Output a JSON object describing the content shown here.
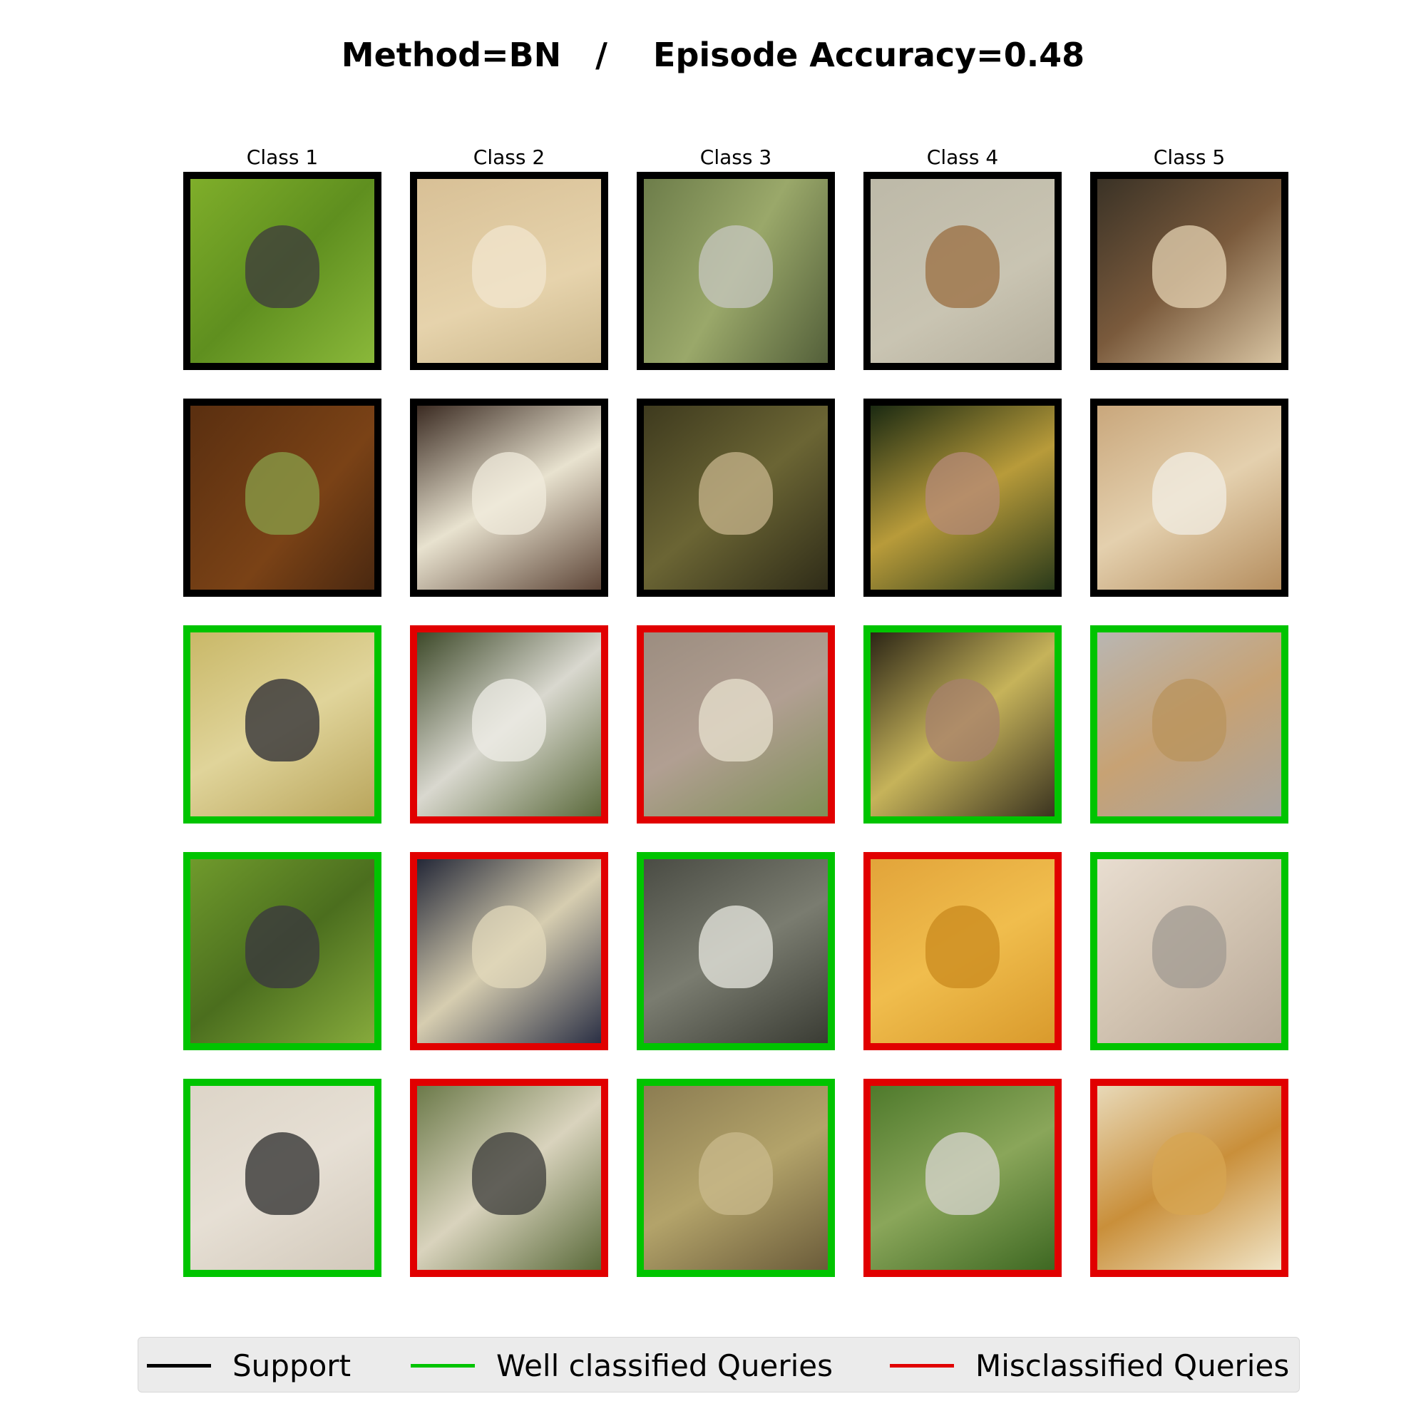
{
  "title": "Method=BN   /    Episode Accuracy=0.48",
  "colors": {
    "support": "#000000",
    "correct": "#00c400",
    "wrong": "#e10000"
  },
  "classes": [
    "Class 1",
    "Class 2",
    "Class 3",
    "Class 4",
    "Class 5"
  ],
  "grid": [
    [
      {
        "status": "support",
        "bg": "linear-gradient(135deg,#7fae2a 0%,#5f8f1f 50%,#8ab83a 100%)",
        "subject": "#3d3a3e"
      },
      {
        "status": "support",
        "bg": "linear-gradient(160deg,#d8c096 0%,#e6d3ac 60%,#cbb78c 100%)",
        "subject": "#f1e6cf"
      },
      {
        "status": "support",
        "bg": "linear-gradient(120deg,#6d7d4a 0%,#9aa86a 50%,#54603a 100%)",
        "subject": "#c7c7c0"
      },
      {
        "status": "support",
        "bg": "linear-gradient(150deg,#bdb9a8 0%,#c9c4b2 60%,#b4ae9c 100%)",
        "subject": "#9a6d40"
      },
      {
        "status": "support",
        "bg": "linear-gradient(140deg,#3a3226 0%,#7a5a3c 50%,#d8c4a2 100%)",
        "subject": "#e5d3b3"
      }
    ],
    [
      {
        "status": "support",
        "bg": "linear-gradient(130deg,#5a2f10 0%,#7a4216 60%,#4a2810 100%)",
        "subject": "#8aa04a"
      },
      {
        "status": "support",
        "bg": "linear-gradient(150deg,#3b2b22 0%,#e8e2cf 50%,#5e4638 100%)",
        "subject": "#f0ebdc"
      },
      {
        "status": "support",
        "bg": "linear-gradient(140deg,#3e3a1e 0%,#6b6534 50%,#2f2c18 100%)",
        "subject": "#c7b48c"
      },
      {
        "status": "support",
        "bg": "linear-gradient(150deg,#1b2a12 0%,#b89b3a 50%,#2a3a1a 100%)",
        "subject": "#b58a7a"
      },
      {
        "status": "support",
        "bg": "linear-gradient(150deg,#c9a77c 0%,#e4d0ae 50%,#b58e5f 100%)",
        "subject": "#f2ede4"
      }
    ],
    [
      {
        "status": "correct",
        "bg": "linear-gradient(150deg,#c9b868 0%,#e0d49a 50%,#b9a55c 100%)",
        "subject": "#2a2a33"
      },
      {
        "status": "wrong",
        "bg": "linear-gradient(140deg,#3e4a2a 0%,#d9d8cf 50%,#5b6a3c 100%)",
        "subject": "#eeece6"
      },
      {
        "status": "wrong",
        "bg": "linear-gradient(150deg,#9c8d80 0%,#b19f92 50%,#7f8f58 100%)",
        "subject": "#e8e2cf"
      },
      {
        "status": "correct",
        "bg": "linear-gradient(140deg,#2c2616 0%,#c6b35a 50%,#3b3420 100%)",
        "subject": "#a7806e"
      },
      {
        "status": "correct",
        "bg": "linear-gradient(150deg,#b9b6b2 0%,#c7a274 50%,#a8a4a0 100%)",
        "subject": "#b8935c"
      }
    ],
    [
      {
        "status": "correct",
        "bg": "linear-gradient(140deg,#6f9a2c 0%,#4b6e1e 50%,#86aa3c 100%)",
        "subject": "#3a3640"
      },
      {
        "status": "wrong",
        "bg": "linear-gradient(140deg,#242838 0%,#d6cdb0 50%,#2b3045 100%)",
        "subject": "#e1d8bb"
      },
      {
        "status": "correct",
        "bg": "linear-gradient(150deg,#4a4c44 0%,#7a7c70 50%,#3a3c34 100%)",
        "subject": "#e8e8e0"
      },
      {
        "status": "wrong",
        "bg": "linear-gradient(150deg,#e2a43a 0%,#f0bd4d 50%,#d99a2c 100%)",
        "subject": "#c98a1e"
      },
      {
        "status": "correct",
        "bg": "linear-gradient(140deg,#e8ddd0 0%,#d2c4b2 50%,#b8a898 100%)",
        "subject": "#a09a92"
      }
    ],
    [
      {
        "status": "correct",
        "bg": "linear-gradient(150deg,#ddd5c8 0%,#e6dfd4 50%,#d2c9bb 100%)",
        "subject": "#2b2b2b"
      },
      {
        "status": "wrong",
        "bg": "linear-gradient(140deg,#6c7a4a 0%,#d9d3bd 50%,#5a6a3a 100%)",
        "subject": "#3a3a38"
      },
      {
        "status": "correct",
        "bg": "linear-gradient(150deg,#8c7d52 0%,#b3a36a 50%,#6b5c3a 100%)",
        "subject": "#c9b98c"
      },
      {
        "status": "wrong",
        "bg": "linear-gradient(150deg,#4f7a2c 0%,#8aa65a 50%,#3e6822 100%)",
        "subject": "#d9d6d2"
      },
      {
        "status": "wrong",
        "bg": "linear-gradient(150deg,#e8d9b8 0%,#c98f3a 50%,#f0e4c6 100%)",
        "subject": "#d7a552"
      }
    ]
  ],
  "legend": [
    {
      "label": "Support",
      "color": "#000000"
    },
    {
      "label": "Well classified Queries",
      "color": "#00c400"
    },
    {
      "label": "Misclassified Queries",
      "color": "#e10000"
    }
  ]
}
